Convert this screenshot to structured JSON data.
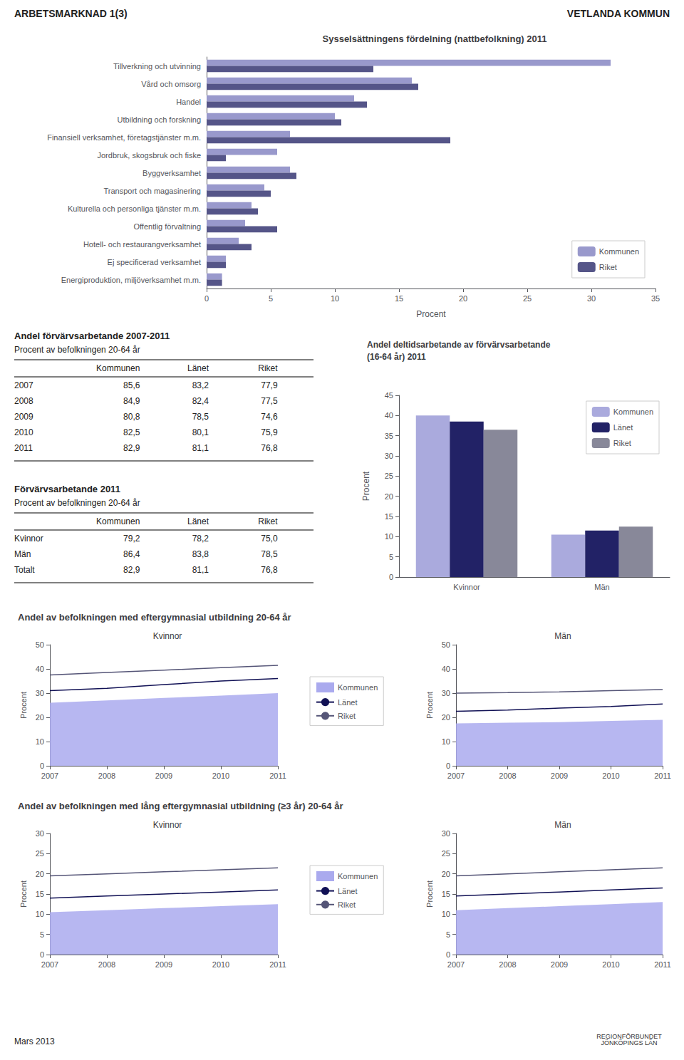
{
  "annotations": [
    "ARBETSMARKNAD 1(3)",
    "VETLANDA KOMMUN",
    "Mars 2013",
    "REGIONFÖRBUNDET\nJÖNKÖPINGS LÄN"
  ],
  "chart_data": [
    {
      "type": "bar",
      "orientation": "horizontal",
      "title": "Sysselsättningens fördelning (nattbefolkning) 2011",
      "categories": [
        "Tillverkning och utvinning",
        "Vård och omsorg",
        "Handel",
        "Utbildning och forskning",
        "Finansiell verksamhet, företagstjänster m.m.",
        "Jordbruk, skogsbruk och fiske",
        "Byggverksamhet",
        "Transport och magasinering",
        "Kulturella och personliga tjänster m.m.",
        "Offentlig förvaltning",
        "Hotell- och restaurangverksamhet",
        "Ej specificerad verksamhet",
        "Energiproduktion, miljöverksamhet m.m."
      ],
      "series": [
        {
          "name": "Kommunen",
          "color": "#9999cc",
          "values": [
            31.5,
            16.0,
            11.5,
            10.0,
            6.5,
            5.5,
            6.5,
            4.5,
            3.5,
            3.0,
            2.5,
            1.5,
            1.2
          ]
        },
        {
          "name": "Riket",
          "color": "#555588",
          "values": [
            13.0,
            16.5,
            12.5,
            10.5,
            19.0,
            1.5,
            7.0,
            5.0,
            4.0,
            5.5,
            3.5,
            1.5,
            1.2
          ]
        }
      ],
      "xlabel": "Procent",
      "xlim": [
        0,
        35
      ],
      "xticks": [
        0,
        5,
        10,
        15,
        20,
        25,
        30,
        35
      ],
      "legend": "lower right",
      "grid": false
    },
    {
      "type": "table",
      "title": "Andel förvärvsarbetande 2007-2011",
      "subtitle": "Procent av befolkningen 20-64 år",
      "categories": [
        "2007",
        "2008",
        "2009",
        "2010",
        "2011"
      ],
      "series": [
        {
          "name": "Kommunen",
          "values": [
            85.6,
            84.9,
            80.8,
            82.5,
            82.9
          ],
          "value_labels": [
            "85,6",
            "84,9",
            "80,8",
            "82,5",
            "82,9"
          ]
        },
        {
          "name": "Länet",
          "values": [
            83.2,
            82.4,
            78.5,
            80.1,
            81.1
          ],
          "value_labels": [
            "83,2",
            "82,4",
            "78,5",
            "80,1",
            "81,1"
          ]
        },
        {
          "name": "Riket",
          "values": [
            77.9,
            77.5,
            74.6,
            75.9,
            76.8
          ],
          "value_labels": [
            "77,9",
            "77,5",
            "74,6",
            "75,9",
            "76,8"
          ]
        }
      ]
    },
    {
      "type": "table",
      "title": "Förvärvsarbetande 2011",
      "subtitle": "Procent av befolkningen 20-64 år",
      "categories": [
        "Kvinnor",
        "Män",
        "Totalt"
      ],
      "series": [
        {
          "name": "Kommunen",
          "values": [
            79.2,
            86.4,
            82.9
          ],
          "value_labels": [
            "79,2",
            "86,4",
            "82,9"
          ]
        },
        {
          "name": "Länet",
          "values": [
            78.2,
            83.8,
            81.1
          ],
          "value_labels": [
            "78,2",
            "83,8",
            "81,1"
          ]
        },
        {
          "name": "Riket",
          "values": [
            75.0,
            78.5,
            76.8
          ],
          "value_labels": [
            "75,0",
            "78,5",
            "76,8"
          ]
        }
      ]
    },
    {
      "type": "bar",
      "title": "Andel deltidsarbetande av förvärvsarbetande\n(16-64 år) 2011",
      "categories": [
        "Kvinnor",
        "Män"
      ],
      "series": [
        {
          "name": "Kommunen",
          "color": "#aaaadd",
          "values": [
            40.0,
            10.5
          ]
        },
        {
          "name": "Länet",
          "color": "#222266",
          "values": [
            38.5,
            11.5
          ]
        },
        {
          "name": "Riket",
          "color": "#888899",
          "values": [
            36.5,
            12.5
          ]
        }
      ],
      "ylabel": "Procent",
      "ylim": [
        0,
        45
      ],
      "yticks": [
        0,
        5,
        10,
        15,
        20,
        25,
        30,
        35,
        40,
        45
      ],
      "legend": "upper right",
      "grid": false
    },
    {
      "type": "area",
      "title": "Kvinnor",
      "annotations": [
        "Andel av befolkningen med eftergymnasial utbildning 20-64 år"
      ],
      "x": [
        2007,
        2008,
        2009,
        2010,
        2011
      ],
      "xlim": [
        2007,
        2011
      ],
      "xticks": [
        2007,
        2008,
        2009,
        2010,
        2011
      ],
      "ylabel": "Procent",
      "ylim": [
        0,
        50
      ],
      "yticks": [
        0,
        10,
        20,
        30,
        40,
        50
      ],
      "series": [
        {
          "name": "Kommunen",
          "type": "area",
          "color": "#aaaaee",
          "values": [
            26.0,
            27.0,
            28.0,
            29.0,
            30.0
          ]
        },
        {
          "name": "Länet",
          "type": "line",
          "color": "#111155",
          "values": [
            31.0,
            32.0,
            33.5,
            35.0,
            36.0
          ]
        },
        {
          "name": "Riket",
          "type": "line",
          "color": "#555577",
          "values": [
            37.5,
            38.5,
            39.5,
            40.5,
            41.5
          ]
        }
      ],
      "legend": "right",
      "grid": false
    },
    {
      "type": "area",
      "title": "Män",
      "x": [
        2007,
        2008,
        2009,
        2010,
        2011
      ],
      "xlim": [
        2007,
        2011
      ],
      "xticks": [
        2007,
        2008,
        2009,
        2010,
        2011
      ],
      "ylabel": "Procent",
      "ylim": [
        0,
        50
      ],
      "yticks": [
        0,
        10,
        20,
        30,
        40,
        50
      ],
      "series": [
        {
          "name": "Kommunen",
          "type": "area",
          "color": "#aaaaee",
          "values": [
            17.5,
            17.8,
            18.0,
            18.5,
            19.0
          ]
        },
        {
          "name": "Länet",
          "type": "line",
          "color": "#111155",
          "values": [
            22.5,
            23.0,
            23.8,
            24.5,
            25.5
          ]
        },
        {
          "name": "Riket",
          "type": "line",
          "color": "#555577",
          "values": [
            30.0,
            30.2,
            30.5,
            31.0,
            31.5
          ]
        }
      ],
      "grid": false
    },
    {
      "type": "area",
      "title": "Kvinnor",
      "annotations": [
        "Andel av befolkningen med lång eftergymnasial utbildning (≥3 år) 20-64 år"
      ],
      "x": [
        2007,
        2008,
        2009,
        2010,
        2011
      ],
      "xlim": [
        2007,
        2011
      ],
      "xticks": [
        2007,
        2008,
        2009,
        2010,
        2011
      ],
      "ylabel": "Procent",
      "ylim": [
        0,
        30
      ],
      "yticks": [
        0,
        5,
        10,
        15,
        20,
        25,
        30
      ],
      "series": [
        {
          "name": "Kommunen",
          "type": "area",
          "color": "#aaaaee",
          "values": [
            10.5,
            11.0,
            11.5,
            12.0,
            12.5
          ]
        },
        {
          "name": "Länet",
          "type": "line",
          "color": "#111155",
          "values": [
            14.0,
            14.5,
            15.0,
            15.5,
            16.0
          ]
        },
        {
          "name": "Riket",
          "type": "line",
          "color": "#555577",
          "values": [
            19.5,
            20.0,
            20.5,
            21.0,
            21.5
          ]
        }
      ],
      "legend": "right",
      "grid": false
    },
    {
      "type": "area",
      "title": "Män",
      "x": [
        2007,
        2008,
        2009,
        2010,
        2011
      ],
      "xlim": [
        2007,
        2011
      ],
      "xticks": [
        2007,
        2008,
        2009,
        2010,
        2011
      ],
      "ylabel": "Procent",
      "ylim": [
        0,
        30
      ],
      "yticks": [
        0,
        5,
        10,
        15,
        20,
        25,
        30
      ],
      "series": [
        {
          "name": "Kommunen",
          "type": "area",
          "color": "#aaaaee",
          "values": [
            11.0,
            11.5,
            12.0,
            12.5,
            13.0
          ]
        },
        {
          "name": "Länet",
          "type": "line",
          "color": "#111155",
          "values": [
            14.5,
            15.0,
            15.5,
            16.0,
            16.5
          ]
        },
        {
          "name": "Riket",
          "type": "line",
          "color": "#555577",
          "values": [
            19.5,
            20.0,
            20.5,
            21.0,
            21.5
          ]
        }
      ],
      "grid": false
    }
  ]
}
